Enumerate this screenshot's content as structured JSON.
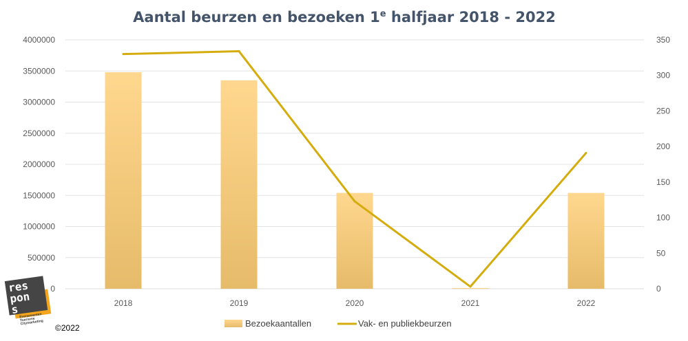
{
  "chart_data": {
    "type": "bar+line",
    "title": "Aantal beurzen en bezoeken 1",
    "title_superscript": "e",
    "title_rest": " halfjaar 2018 - 2022",
    "categories": [
      "2018",
      "2019",
      "2020",
      "2021",
      "2022"
    ],
    "series": [
      {
        "name": "Bezoekaantallen",
        "type": "bar",
        "axis": "left",
        "values": [
          3480000,
          3350000,
          1540000,
          10000,
          1540000
        ],
        "color_top": "#ffd78e",
        "color_bottom": "#e6bb6a"
      },
      {
        "name": "Vak- en publiekbeurzen",
        "type": "line",
        "axis": "right",
        "values": [
          330,
          334,
          123,
          3,
          191
        ],
        "color": "#d4ac0d"
      }
    ],
    "left_axis": {
      "ylim": [
        0,
        4000000
      ],
      "ticks": [
        "0",
        "500000",
        "1000000",
        "1500000",
        "2000000",
        "2500000",
        "3000000",
        "3500000",
        "4000000"
      ]
    },
    "right_axis": {
      "ylim": [
        0,
        350
      ],
      "ticks": [
        "0",
        "50",
        "100",
        "150",
        "200",
        "250",
        "300",
        "350"
      ]
    },
    "grid": true,
    "legend_position": "bottom"
  },
  "logo": {
    "line1": "res",
    "line2": "pon",
    "line3": "s",
    "tagline": [
      "Evenementen",
      "Toerisme",
      "Citymarketing"
    ]
  },
  "copyright": "©2022"
}
